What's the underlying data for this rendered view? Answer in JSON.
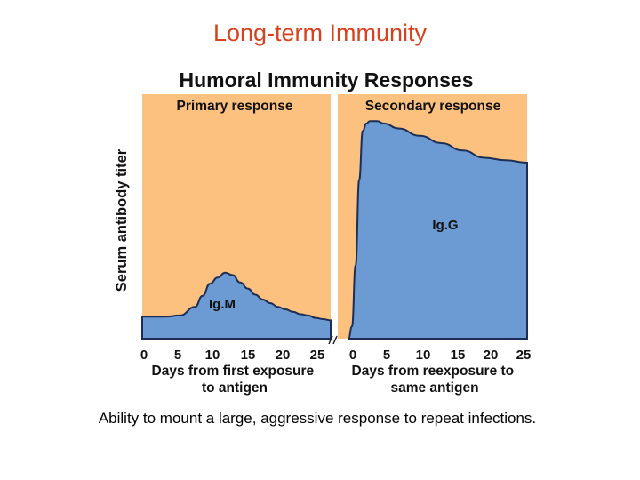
{
  "slide": {
    "title": "Long-term Immunity",
    "caption": "Ability to mount a large, aggressive response to repeat infections."
  },
  "chart_data": {
    "type": "area",
    "title": "Humoral Immunity Responses",
    "ylabel": "Serum antibody titer",
    "colors": {
      "background": "#fcc07f",
      "fill": "#6b9bd2",
      "line": "#1c2e55"
    },
    "panels": [
      {
        "name": "Primary response",
        "xlabel": "Days from first exposure to antigen",
        "xticks": [
          0,
          5,
          10,
          15,
          20,
          25
        ],
        "xlim": [
          0,
          25
        ],
        "ylim": [
          0,
          100
        ],
        "series_label": "Ig.M",
        "x": [
          0,
          3,
          5,
          7,
          8,
          9,
          10,
          11,
          12,
          13,
          14,
          15,
          16,
          17,
          18,
          19,
          20,
          21,
          22,
          23,
          24,
          25
        ],
        "values": [
          9,
          9,
          9.5,
          13,
          17.5,
          22.5,
          25,
          27,
          26,
          23,
          20.5,
          18,
          16,
          14.5,
          13,
          12,
          11,
          10,
          9.5,
          8.5,
          8,
          7.5
        ]
      },
      {
        "name": "Secondary response",
        "xlabel": "Days from reexposure to same antigen",
        "xticks": [
          0,
          5,
          10,
          15,
          20,
          25
        ],
        "xlim": [
          0,
          25
        ],
        "ylim": [
          0,
          100
        ],
        "series_label": "Ig.G",
        "x": [
          0,
          0.5,
          1,
          1.5,
          2,
          2.5,
          3,
          4,
          5,
          7,
          10,
          13,
          16,
          19,
          22,
          25
        ],
        "values": [
          0,
          5,
          30,
          65,
          85,
          88,
          89,
          89,
          88,
          86,
          83,
          80,
          77,
          74,
          73,
          72
        ]
      }
    ]
  }
}
